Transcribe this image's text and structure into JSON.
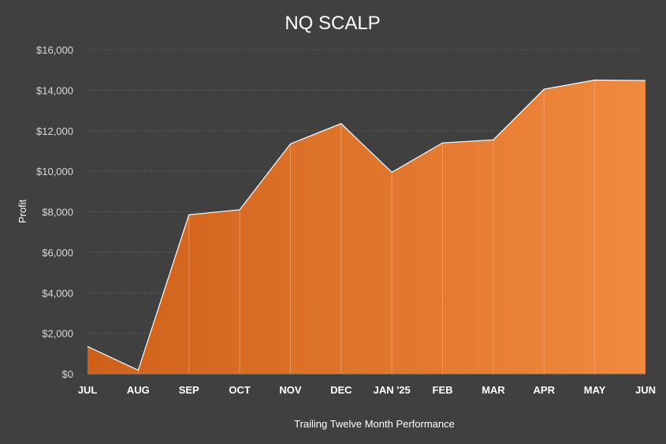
{
  "chart_data": {
    "type": "area",
    "title": "NQ SCALP",
    "xlabel": "Trailing Twelve Month Performance",
    "ylabel": "Profit",
    "categories": [
      "JUL",
      "AUG",
      "SEP",
      "OCT",
      "NOV",
      "DEC",
      "JAN '25",
      "FEB",
      "MAR",
      "APR",
      "MAY",
      "JUN"
    ],
    "series": [
      {
        "values": [
          1350,
          180,
          7850,
          8100,
          11350,
          12350,
          9950,
          11400,
          11550,
          14050,
          14500,
          14480
        ]
      }
    ],
    "ylim": [
      0,
      16000
    ],
    "yticks": [
      0,
      2000,
      4000,
      6000,
      8000,
      10000,
      12000,
      14000,
      16000
    ],
    "ytick_labels": [
      "$0",
      "$2,000",
      "$4,000",
      "$6,000",
      "$8,000",
      "$10,000",
      "$12,000",
      "$14,000",
      "$16,000"
    ],
    "grid": true,
    "legend": "none",
    "colors": {
      "background": "#404040",
      "fill_start": "#cf6019",
      "fill_end": "#f08a3e",
      "line": "#ffffff"
    }
  }
}
